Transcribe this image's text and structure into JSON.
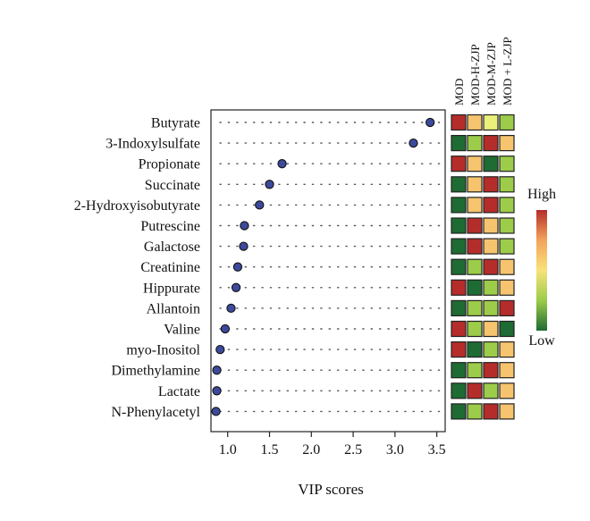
{
  "chart_data": {
    "type": "scatter",
    "title": "",
    "xlabel": "VIP scores",
    "ylabel": "",
    "xlim": [
      0.8,
      3.6
    ],
    "x_ticks": [
      1.0,
      1.5,
      2.0,
      2.5,
      3.0,
      3.5
    ],
    "x_tick_labels": [
      "1.0",
      "1.5",
      "2.0",
      "2.5",
      "3.0",
      "3.5"
    ],
    "grid": "dotted rows",
    "point_color": "#3d4a9c",
    "categories": [
      "Butyrate",
      "3-Indoxylsulfate",
      "Propionate",
      "Succinate",
      "2-Hydroxyisobutyrate",
      "Putrescine",
      "Galactose",
      "Creatinine",
      "Hippurate",
      "Allantoin",
      "Valine",
      "myo-Inositol",
      "Dimethylamine",
      "Lactate",
      "N-Phenylacetyl"
    ],
    "values": [
      3.42,
      3.22,
      1.65,
      1.5,
      1.38,
      1.2,
      1.19,
      1.12,
      1.1,
      1.04,
      0.97,
      0.91,
      0.87,
      0.87,
      0.86
    ],
    "heatmap": {
      "columns": [
        "MOD",
        "MOD-H-ZJP",
        "MOD-M-ZJP",
        "MOD + L-ZJP"
      ],
      "levels": [
        [
          5,
          3,
          2,
          1
        ],
        [
          0,
          1,
          5,
          3
        ],
        [
          5,
          3,
          0,
          1
        ],
        [
          0,
          3,
          5,
          1
        ],
        [
          0,
          3,
          5,
          1
        ],
        [
          0,
          5,
          3,
          1
        ],
        [
          0,
          5,
          3,
          1
        ],
        [
          0,
          1,
          5,
          3
        ],
        [
          5,
          0,
          1,
          3
        ],
        [
          0,
          1,
          1,
          5
        ],
        [
          5,
          1,
          3,
          0
        ],
        [
          5,
          0,
          1,
          3
        ],
        [
          0,
          1,
          5,
          3
        ],
        [
          0,
          5,
          1,
          3
        ],
        [
          0,
          1,
          5,
          3
        ]
      ],
      "palette": [
        "#1e6b33",
        "#9ccc49",
        "#eaf07a",
        "#f6c46f",
        "#f3a35c",
        "#b52d2a"
      ]
    },
    "legend": {
      "high_label": "High",
      "low_label": "Low",
      "gradient": [
        "#b52d2a",
        "#f3a35c",
        "#f8e27a",
        "#9ccc49",
        "#1e6b33"
      ]
    }
  }
}
